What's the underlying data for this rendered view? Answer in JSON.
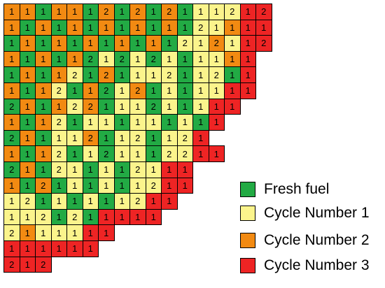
{
  "legend": {
    "fresh": {
      "label": "Fresh fuel",
      "color": "#22aa44"
    },
    "cycle1": {
      "label": "Cycle Number 1",
      "color": "#fbf48c"
    },
    "cycle2": {
      "label": "Cycle Number 2",
      "color": "#f28a12"
    },
    "cycle3": {
      "label": "Cycle Number 3",
      "color": "#ee2424"
    }
  },
  "core_map": [
    [
      {
        "c": 2,
        "n": "1"
      },
      {
        "c": 2,
        "n": "1"
      },
      {
        "c": 0,
        "n": "1"
      },
      {
        "c": 2,
        "n": "1"
      },
      {
        "c": 2,
        "n": "1"
      },
      {
        "c": 0,
        "n": "1"
      },
      {
        "c": 2,
        "n": "2"
      },
      {
        "c": 0,
        "n": "1"
      },
      {
        "c": 2,
        "n": "2"
      },
      {
        "c": 0,
        "n": "1"
      },
      {
        "c": 2,
        "n": "2"
      },
      {
        "c": 0,
        "n": "1"
      },
      {
        "c": 1,
        "n": "1"
      },
      {
        "c": 1,
        "n": "1"
      },
      {
        "c": 1,
        "n": "2"
      },
      {
        "c": 3,
        "n": "1"
      },
      {
        "c": 3,
        "n": "2"
      }
    ],
    [
      {
        "c": 2,
        "n": "1"
      },
      {
        "c": 0,
        "n": "1"
      },
      {
        "c": 2,
        "n": "1"
      },
      {
        "c": 0,
        "n": "1"
      },
      {
        "c": 2,
        "n": "1"
      },
      {
        "c": 0,
        "n": "1"
      },
      {
        "c": 2,
        "n": "1"
      },
      {
        "c": 0,
        "n": "1"
      },
      {
        "c": 2,
        "n": "1"
      },
      {
        "c": 0,
        "n": "1"
      },
      {
        "c": 2,
        "n": "1"
      },
      {
        "c": 0,
        "n": "1"
      },
      {
        "c": 1,
        "n": "2"
      },
      {
        "c": 1,
        "n": "1"
      },
      {
        "c": 2,
        "n": "1"
      },
      {
        "c": 3,
        "n": "1"
      },
      {
        "c": 3,
        "n": "1"
      }
    ],
    [
      {
        "c": 0,
        "n": "1"
      },
      {
        "c": 2,
        "n": "1"
      },
      {
        "c": 0,
        "n": "1"
      },
      {
        "c": 2,
        "n": "1"
      },
      {
        "c": 0,
        "n": "1"
      },
      {
        "c": 2,
        "n": "1"
      },
      {
        "c": 0,
        "n": "1"
      },
      {
        "c": 2,
        "n": "1"
      },
      {
        "c": 0,
        "n": "1"
      },
      {
        "c": 2,
        "n": "1"
      },
      {
        "c": 0,
        "n": "1"
      },
      {
        "c": 1,
        "n": "2"
      },
      {
        "c": 1,
        "n": "1"
      },
      {
        "c": 2,
        "n": "2"
      },
      {
        "c": 1,
        "n": "1"
      },
      {
        "c": 3,
        "n": "1"
      },
      {
        "c": 3,
        "n": "2"
      }
    ],
    [
      {
        "c": 2,
        "n": "1"
      },
      {
        "c": 0,
        "n": "1"
      },
      {
        "c": 2,
        "n": "1"
      },
      {
        "c": 0,
        "n": "1"
      },
      {
        "c": 2,
        "n": "1"
      },
      {
        "c": 0,
        "n": "2"
      },
      {
        "c": 1,
        "n": "1"
      },
      {
        "c": 0,
        "n": "2"
      },
      {
        "c": 1,
        "n": "1"
      },
      {
        "c": 0,
        "n": "2"
      },
      {
        "c": 1,
        "n": "1"
      },
      {
        "c": 0,
        "n": "1"
      },
      {
        "c": 1,
        "n": "1"
      },
      {
        "c": 1,
        "n": "1"
      },
      {
        "c": 2,
        "n": "1"
      },
      {
        "c": 3,
        "n": "1"
      }
    ],
    [
      {
        "c": 0,
        "n": "1"
      },
      {
        "c": 2,
        "n": "1"
      },
      {
        "c": 0,
        "n": "1"
      },
      {
        "c": 2,
        "n": "1"
      },
      {
        "c": 1,
        "n": "2"
      },
      {
        "c": 0,
        "n": "1"
      },
      {
        "c": 2,
        "n": "2"
      },
      {
        "c": 0,
        "n": "1"
      },
      {
        "c": 1,
        "n": "1"
      },
      {
        "c": 1,
        "n": "1"
      },
      {
        "c": 1,
        "n": "2"
      },
      {
        "c": 0,
        "n": "1"
      },
      {
        "c": 1,
        "n": "1"
      },
      {
        "c": 1,
        "n": "2"
      },
      {
        "c": 0,
        "n": "1"
      },
      {
        "c": 3,
        "n": "1"
      }
    ],
    [
      {
        "c": 2,
        "n": "1"
      },
      {
        "c": 0,
        "n": "1"
      },
      {
        "c": 2,
        "n": "1"
      },
      {
        "c": 1,
        "n": "2"
      },
      {
        "c": 0,
        "n": "1"
      },
      {
        "c": 2,
        "n": "1"
      },
      {
        "c": 0,
        "n": "2"
      },
      {
        "c": 1,
        "n": "1"
      },
      {
        "c": 2,
        "n": "2"
      },
      {
        "c": 0,
        "n": "1"
      },
      {
        "c": 1,
        "n": "1"
      },
      {
        "c": 0,
        "n": "1"
      },
      {
        "c": 1,
        "n": "1"
      },
      {
        "c": 1,
        "n": "1"
      },
      {
        "c": 3,
        "n": "1"
      },
      {
        "c": 3,
        "n": "1"
      }
    ],
    [
      {
        "c": 0,
        "n": "2"
      },
      {
        "c": 2,
        "n": "1"
      },
      {
        "c": 0,
        "n": "1"
      },
      {
        "c": 2,
        "n": "1"
      },
      {
        "c": 1,
        "n": "2"
      },
      {
        "c": 2,
        "n": "2"
      },
      {
        "c": 0,
        "n": "1"
      },
      {
        "c": 1,
        "n": "1"
      },
      {
        "c": 1,
        "n": "1"
      },
      {
        "c": 0,
        "n": "2"
      },
      {
        "c": 1,
        "n": "1"
      },
      {
        "c": 0,
        "n": "1"
      },
      {
        "c": 1,
        "n": "1"
      },
      {
        "c": 3,
        "n": "1"
      },
      {
        "c": 3,
        "n": "1"
      }
    ],
    [
      {
        "c": 2,
        "n": "1"
      },
      {
        "c": 0,
        "n": "1"
      },
      {
        "c": 2,
        "n": "1"
      },
      {
        "c": 1,
        "n": "2"
      },
      {
        "c": 0,
        "n": "1"
      },
      {
        "c": 1,
        "n": "1"
      },
      {
        "c": 1,
        "n": "1"
      },
      {
        "c": 0,
        "n": "1"
      },
      {
        "c": 1,
        "n": "1"
      },
      {
        "c": 1,
        "n": "1"
      },
      {
        "c": 0,
        "n": "1"
      },
      {
        "c": 1,
        "n": "1"
      },
      {
        "c": 0,
        "n": "1"
      },
      {
        "c": 3,
        "n": "1"
      }
    ],
    [
      {
        "c": 0,
        "n": "2"
      },
      {
        "c": 2,
        "n": "1"
      },
      {
        "c": 0,
        "n": "1"
      },
      {
        "c": 1,
        "n": "1"
      },
      {
        "c": 1,
        "n": "1"
      },
      {
        "c": 2,
        "n": "2"
      },
      {
        "c": 0,
        "n": "1"
      },
      {
        "c": 1,
        "n": "1"
      },
      {
        "c": 1,
        "n": "2"
      },
      {
        "c": 0,
        "n": "1"
      },
      {
        "c": 1,
        "n": "1"
      },
      {
        "c": 1,
        "n": "2"
      },
      {
        "c": 3,
        "n": "1"
      }
    ],
    [
      {
        "c": 2,
        "n": "1"
      },
      {
        "c": 0,
        "n": "1"
      },
      {
        "c": 2,
        "n": "1"
      },
      {
        "c": 1,
        "n": "2"
      },
      {
        "c": 0,
        "n": "1"
      },
      {
        "c": 1,
        "n": "1"
      },
      {
        "c": 0,
        "n": "2"
      },
      {
        "c": 1,
        "n": "1"
      },
      {
        "c": 1,
        "n": "1"
      },
      {
        "c": 0,
        "n": "1"
      },
      {
        "c": 1,
        "n": "2"
      },
      {
        "c": 1,
        "n": "2"
      },
      {
        "c": 3,
        "n": "1"
      },
      {
        "c": 3,
        "n": "1"
      }
    ],
    [
      {
        "c": 0,
        "n": "2"
      },
      {
        "c": 2,
        "n": "1"
      },
      {
        "c": 0,
        "n": "1"
      },
      {
        "c": 1,
        "n": "2"
      },
      {
        "c": 1,
        "n": "1"
      },
      {
        "c": 0,
        "n": "1"
      },
      {
        "c": 1,
        "n": "1"
      },
      {
        "c": 0,
        "n": "1"
      },
      {
        "c": 1,
        "n": "2"
      },
      {
        "c": 1,
        "n": "1"
      },
      {
        "c": 3,
        "n": "1"
      },
      {
        "c": 3,
        "n": "1"
      }
    ],
    [
      {
        "c": 2,
        "n": "1"
      },
      {
        "c": 0,
        "n": "1"
      },
      {
        "c": 2,
        "n": "2"
      },
      {
        "c": 0,
        "n": "1"
      },
      {
        "c": 1,
        "n": "1"
      },
      {
        "c": 0,
        "n": "1"
      },
      {
        "c": 1,
        "n": "1"
      },
      {
        "c": 0,
        "n": "1"
      },
      {
        "c": 1,
        "n": "1"
      },
      {
        "c": 1,
        "n": "2"
      },
      {
        "c": 3,
        "n": "1"
      },
      {
        "c": 3,
        "n": "1"
      }
    ],
    [
      {
        "c": 1,
        "n": "1"
      },
      {
        "c": 1,
        "n": "2"
      },
      {
        "c": 0,
        "n": "1"
      },
      {
        "c": 1,
        "n": "1"
      },
      {
        "c": 0,
        "n": "1"
      },
      {
        "c": 1,
        "n": "1"
      },
      {
        "c": 0,
        "n": "1"
      },
      {
        "c": 1,
        "n": "1"
      },
      {
        "c": 1,
        "n": "2"
      },
      {
        "c": 3,
        "n": "1"
      },
      {
        "c": 3,
        "n": "1"
      }
    ],
    [
      {
        "c": 1,
        "n": "1"
      },
      {
        "c": 1,
        "n": "1"
      },
      {
        "c": 1,
        "n": "2"
      },
      {
        "c": 0,
        "n": "1"
      },
      {
        "c": 1,
        "n": "2"
      },
      {
        "c": 0,
        "n": "1"
      },
      {
        "c": 3,
        "n": "1"
      },
      {
        "c": 3,
        "n": "1"
      },
      {
        "c": 3,
        "n": "1"
      },
      {
        "c": 3,
        "n": "1"
      }
    ],
    [
      {
        "c": 1,
        "n": "2"
      },
      {
        "c": 2,
        "n": "1"
      },
      {
        "c": 1,
        "n": "1"
      },
      {
        "c": 1,
        "n": "1"
      },
      {
        "c": 1,
        "n": "1"
      },
      {
        "c": 3,
        "n": "1"
      },
      {
        "c": 3,
        "n": "1"
      }
    ],
    [
      {
        "c": 3,
        "n": "1"
      },
      {
        "c": 3,
        "n": "1"
      },
      {
        "c": 3,
        "n": "1"
      },
      {
        "c": 3,
        "n": "1"
      },
      {
        "c": 3,
        "n": "1"
      },
      {
        "c": 3,
        "n": "1"
      }
    ],
    [
      {
        "c": 3,
        "n": "2"
      },
      {
        "c": 3,
        "n": "1"
      },
      {
        "c": 3,
        "n": "2"
      }
    ]
  ]
}
